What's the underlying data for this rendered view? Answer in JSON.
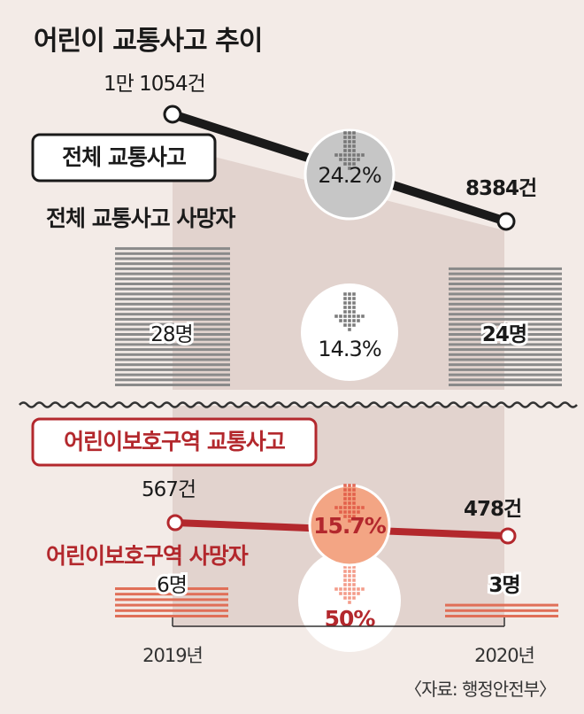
{
  "chart_data": {
    "type": "line",
    "title": "어린이 교통사고 추이",
    "categories": [
      "2019년",
      "2020년"
    ],
    "source": "〈자료: 행정안전부〉",
    "total": {
      "accidents": {
        "label": "전체 교통사고",
        "values": [
          11054,
          8384
        ],
        "value_labels": [
          "1만 1054건",
          "8384건"
        ],
        "change_label": "24.2%"
      },
      "deaths": {
        "label": "전체 교통사고 사망자",
        "values": [
          28,
          24
        ],
        "value_labels": [
          "28명",
          "24명"
        ],
        "change_label": "14.3%"
      }
    },
    "school_zone": {
      "accidents": {
        "label": "어린이보호구역 교통사고",
        "values": [
          567,
          478
        ],
        "value_labels": [
          "567건",
          "478건"
        ],
        "change_label": "15.7%"
      },
      "deaths": {
        "label": "어린이보호구역 사망자",
        "values": [
          6,
          3
        ],
        "value_labels": [
          "6명",
          "3명"
        ],
        "change_label": "50%"
      }
    }
  },
  "colors": {
    "background": "#f3ebe7",
    "band": "#dccbc6",
    "dark_line": "#1a1a1a",
    "red": "#b3282d",
    "gray_bars": "#8a8a8a",
    "red_bars": "#e06f58",
    "gray_circle": "#c6c6c6",
    "salmon_circle": "#f3a584"
  }
}
